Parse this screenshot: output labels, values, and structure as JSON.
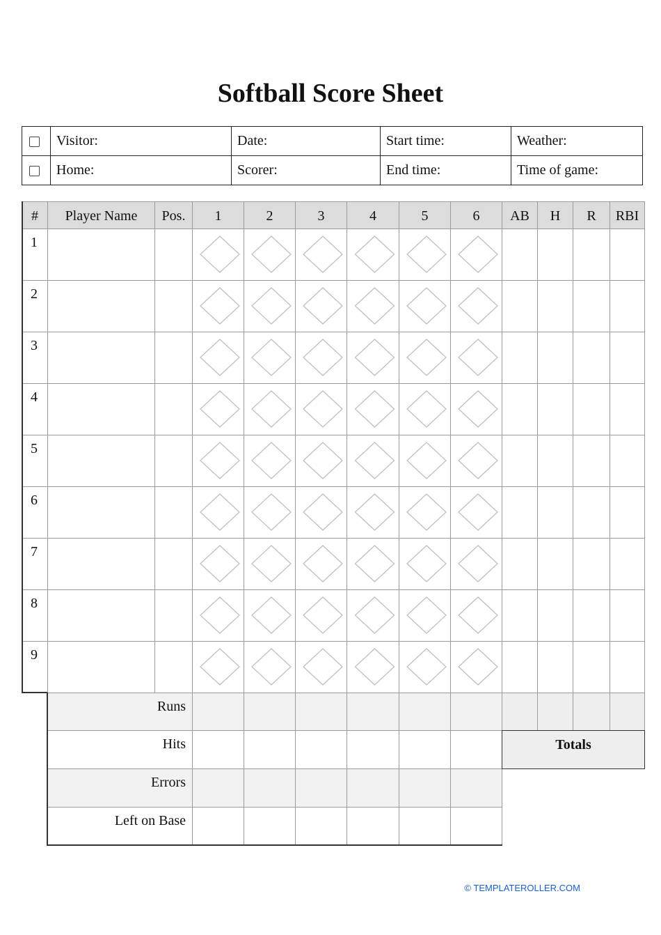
{
  "title": "Softball Score Sheet",
  "info": {
    "row1": [
      "Visitor:",
      "Date:",
      "Start time:",
      "Weather:"
    ],
    "row2": [
      "Home:",
      "Scorer:",
      "End time:",
      "Time of game:"
    ]
  },
  "table": {
    "headers": [
      "#",
      "Player Name",
      "Pos.",
      "1",
      "2",
      "3",
      "4",
      "5",
      "6",
      "AB",
      "H",
      "R",
      "RBI"
    ],
    "rows": [
      "1",
      "2",
      "3",
      "4",
      "5",
      "6",
      "7",
      "8",
      "9"
    ]
  },
  "summary": {
    "labels": [
      "Runs",
      "Hits",
      "Errors",
      "Left on Base"
    ],
    "totals": "Totals"
  },
  "footer": {
    "copyright": "©",
    "site": "TEMPLATEROLLER.COM"
  },
  "colors": {
    "header_bg": "#dcdcdc",
    "shaded_row": "#f2f2f2",
    "link": "#1a5fd0"
  }
}
